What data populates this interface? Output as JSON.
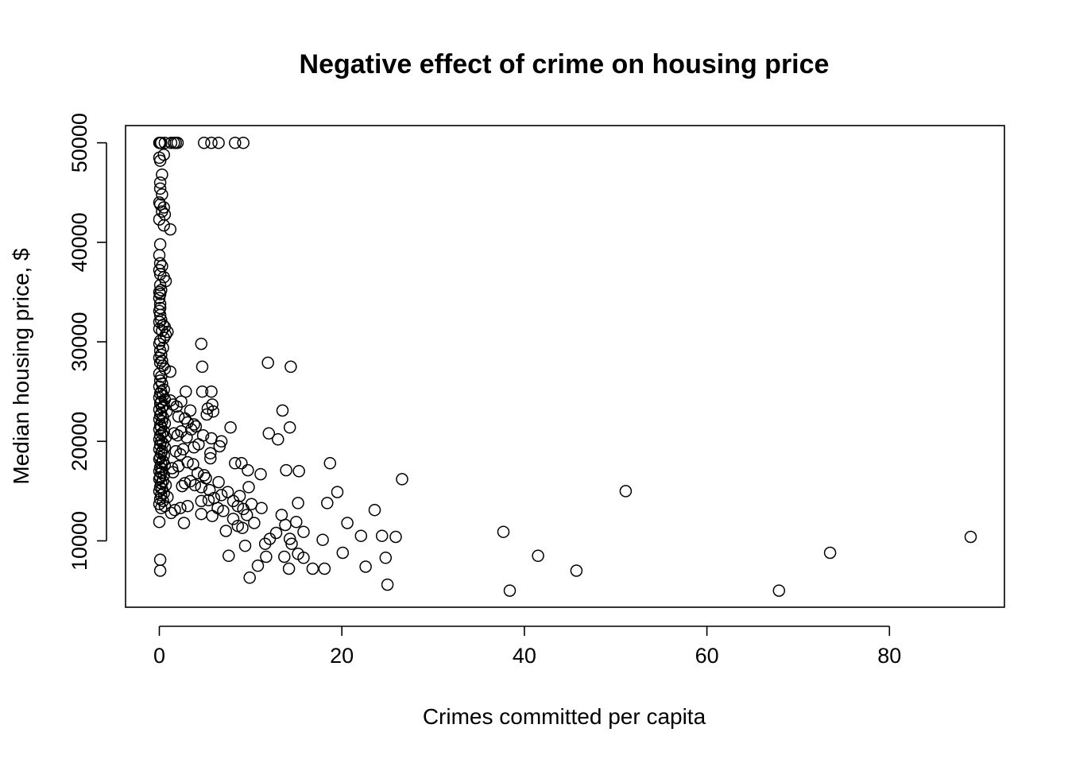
{
  "chart_data": {
    "type": "scatter",
    "title": "Negative effect of crime on housing price",
    "xlabel": "Crimes committed per capita",
    "ylabel": "Median housing price, $",
    "xlim": [
      -3.7,
      92.6
    ],
    "ylim": [
      3330,
      51730
    ],
    "xticks": [
      0,
      20,
      40,
      60,
      80
    ],
    "yticks": [
      10000,
      20000,
      30000,
      40000,
      50000
    ],
    "xtick_labels": [
      "0",
      "20",
      "40",
      "60",
      "80"
    ],
    "ytick_labels": [
      "10000",
      "20000",
      "30000",
      "40000",
      "50000"
    ],
    "grid": false,
    "legend": "none",
    "marker": "open-circle",
    "color": "#000000",
    "points": [
      [
        0.0,
        50000
      ],
      [
        0.1,
        50000
      ],
      [
        0.2,
        50000
      ],
      [
        0.6,
        50000
      ],
      [
        1.3,
        50000
      ],
      [
        1.6,
        50000
      ],
      [
        1.8,
        50000
      ],
      [
        2.0,
        50000
      ],
      [
        4.9,
        50000
      ],
      [
        5.7,
        50000
      ],
      [
        6.5,
        50000
      ],
      [
        8.3,
        50000
      ],
      [
        9.2,
        50000
      ],
      [
        0.0,
        48500
      ],
      [
        0.1,
        48200
      ],
      [
        0.5,
        48800
      ],
      [
        0.3,
        46800
      ],
      [
        0.1,
        46000
      ],
      [
        0.1,
        45400
      ],
      [
        0.3,
        44800
      ],
      [
        0.0,
        44000
      ],
      [
        0.1,
        43800
      ],
      [
        0.5,
        43500
      ],
      [
        0.3,
        43100
      ],
      [
        0.6,
        42800
      ],
      [
        0.0,
        42300
      ],
      [
        0.5,
        41700
      ],
      [
        1.2,
        41300
      ],
      [
        0.1,
        39800
      ],
      [
        0.0,
        38700
      ],
      [
        0.1,
        37900
      ],
      [
        0.3,
        37600
      ],
      [
        0.0,
        37200
      ],
      [
        0.1,
        36800
      ],
      [
        0.5,
        36500
      ],
      [
        0.7,
        36100
      ],
      [
        0.1,
        35700
      ],
      [
        0.2,
        35200
      ],
      [
        0.0,
        35000
      ],
      [
        0.1,
        34800
      ],
      [
        0.0,
        34400
      ],
      [
        0.1,
        33800
      ],
      [
        0.1,
        33400
      ],
      [
        0.0,
        33100
      ],
      [
        0.1,
        32700
      ],
      [
        0.2,
        32200
      ],
      [
        0.0,
        32000
      ],
      [
        0.4,
        31700
      ],
      [
        0.6,
        31500
      ],
      [
        0.0,
        31300
      ],
      [
        0.3,
        31100
      ],
      [
        0.9,
        31000
      ],
      [
        0.7,
        30700
      ],
      [
        0.5,
        30400
      ],
      [
        0.1,
        30100
      ],
      [
        0.0,
        29800
      ],
      [
        0.4,
        29400
      ],
      [
        0.1,
        29100
      ],
      [
        0.2,
        28700
      ],
      [
        0.0,
        28400
      ],
      [
        0.3,
        28100
      ],
      [
        0.1,
        27900
      ],
      [
        0.4,
        27600
      ],
      [
        0.6,
        27300
      ],
      [
        1.2,
        27000
      ],
      [
        0.0,
        26800
      ],
      [
        0.2,
        26500
      ],
      [
        0.1,
        26100
      ],
      [
        0.3,
        25800
      ],
      [
        0.0,
        25500
      ],
      [
        0.5,
        25200
      ],
      [
        0.2,
        25000
      ],
      [
        0.1,
        24800
      ],
      [
        0.4,
        24600
      ],
      [
        0.0,
        24400
      ],
      [
        0.6,
        24200
      ],
      [
        0.2,
        24000
      ],
      [
        0.1,
        23800
      ],
      [
        0.5,
        23600
      ],
      [
        0.3,
        23400
      ],
      [
        0.0,
        23200
      ],
      [
        0.8,
        23000
      ],
      [
        0.2,
        22800
      ],
      [
        0.1,
        22600
      ],
      [
        0.4,
        22400
      ],
      [
        0.0,
        22200
      ],
      [
        0.3,
        22000
      ],
      [
        0.6,
        21800
      ],
      [
        0.1,
        21600
      ],
      [
        0.2,
        21400
      ],
      [
        0.0,
        21200
      ],
      [
        0.5,
        21000
      ],
      [
        0.3,
        20800
      ],
      [
        0.1,
        20600
      ],
      [
        0.7,
        20400
      ],
      [
        0.0,
        20200
      ],
      [
        0.2,
        20000
      ],
      [
        0.4,
        19800
      ],
      [
        0.1,
        19600
      ],
      [
        0.6,
        19400
      ],
      [
        0.0,
        19200
      ],
      [
        0.3,
        19000
      ],
      [
        0.2,
        18800
      ],
      [
        0.5,
        18600
      ],
      [
        0.1,
        18400
      ],
      [
        0.0,
        18200
      ],
      [
        0.4,
        18000
      ],
      [
        0.2,
        17800
      ],
      [
        0.6,
        17600
      ],
      [
        0.1,
        17400
      ],
      [
        0.3,
        17200
      ],
      [
        0.0,
        17000
      ],
      [
        0.2,
        16800
      ],
      [
        0.5,
        16600
      ],
      [
        0.1,
        16400
      ],
      [
        0.0,
        16200
      ],
      [
        0.4,
        16000
      ],
      [
        0.2,
        15800
      ],
      [
        0.7,
        15600
      ],
      [
        0.1,
        15400
      ],
      [
        0.3,
        15200
      ],
      [
        0.0,
        15000
      ],
      [
        0.5,
        14800
      ],
      [
        0.2,
        14600
      ],
      [
        0.9,
        14400
      ],
      [
        0.1,
        14200
      ],
      [
        0.4,
        14000
      ],
      [
        0.0,
        13700
      ],
      [
        0.6,
        13500
      ],
      [
        0.2,
        13300
      ],
      [
        0.0,
        11900
      ],
      [
        0.1,
        8100
      ],
      [
        0.1,
        7000
      ],
      [
        1.2,
        24100
      ],
      [
        1.5,
        23700
      ],
      [
        1.9,
        23500
      ],
      [
        2.4,
        24000
      ],
      [
        2.9,
        25000
      ],
      [
        4.7,
        25000
      ],
      [
        5.7,
        25000
      ],
      [
        5.8,
        23700
      ],
      [
        5.3,
        23300
      ],
      [
        5.9,
        23000
      ],
      [
        5.2,
        22700
      ],
      [
        3.4,
        23100
      ],
      [
        2.1,
        22500
      ],
      [
        2.8,
        22300
      ],
      [
        3.1,
        21900
      ],
      [
        3.8,
        21700
      ],
      [
        4.0,
        21500
      ],
      [
        3.5,
        21200
      ],
      [
        2.4,
        21000
      ],
      [
        1.6,
        20800
      ],
      [
        2.0,
        20600
      ],
      [
        3.0,
        20400
      ],
      [
        4.8,
        20600
      ],
      [
        5.7,
        20300
      ],
      [
        6.8,
        20000
      ],
      [
        6.6,
        19500
      ],
      [
        4.3,
        19700
      ],
      [
        3.8,
        19400
      ],
      [
        2.6,
        19200
      ],
      [
        1.8,
        19000
      ],
      [
        2.3,
        18700
      ],
      [
        5.6,
        18800
      ],
      [
        5.6,
        18300
      ],
      [
        3.1,
        17900
      ],
      [
        3.7,
        17700
      ],
      [
        2.1,
        17500
      ],
      [
        1.4,
        17300
      ],
      [
        1.5,
        16900
      ],
      [
        4.2,
        16800
      ],
      [
        4.9,
        16600
      ],
      [
        5.1,
        16300
      ],
      [
        3.4,
        16000
      ],
      [
        2.8,
        15800
      ],
      [
        2.5,
        15500
      ],
      [
        3.9,
        15600
      ],
      [
        4.6,
        15400
      ],
      [
        5.5,
        15100
      ],
      [
        6.5,
        15900
      ],
      [
        7.5,
        14900
      ],
      [
        6.8,
        14600
      ],
      [
        6.0,
        14300
      ],
      [
        5.4,
        14100
      ],
      [
        4.6,
        14000
      ],
      [
        3.1,
        13500
      ],
      [
        2.3,
        13300
      ],
      [
        1.7,
        13100
      ],
      [
        1.3,
        12800
      ],
      [
        2.7,
        11800
      ],
      [
        4.6,
        12700
      ],
      [
        5.8,
        12500
      ],
      [
        6.4,
        13300
      ],
      [
        7.0,
        13000
      ],
      [
        7.3,
        11000
      ],
      [
        7.6,
        8500
      ],
      [
        7.8,
        21400
      ],
      [
        8.3,
        17800
      ],
      [
        9.0,
        17800
      ],
      [
        9.7,
        17100
      ],
      [
        11.1,
        16700
      ],
      [
        12.0,
        20800
      ],
      [
        13.0,
        20200
      ],
      [
        13.5,
        23100
      ],
      [
        14.3,
        21400
      ],
      [
        11.9,
        27900
      ],
      [
        14.4,
        27500
      ],
      [
        4.7,
        27500
      ],
      [
        4.6,
        29800
      ],
      [
        13.9,
        17100
      ],
      [
        15.3,
        17000
      ],
      [
        18.7,
        17800
      ],
      [
        26.6,
        16200
      ],
      [
        19.5,
        14900
      ],
      [
        9.8,
        15400
      ],
      [
        8.8,
        14500
      ],
      [
        8.1,
        14000
      ],
      [
        8.6,
        13500
      ],
      [
        9.2,
        13200
      ],
      [
        10.1,
        13700
      ],
      [
        11.2,
        13300
      ],
      [
        9.6,
        12600
      ],
      [
        8.1,
        12200
      ],
      [
        8.6,
        11500
      ],
      [
        9.1,
        11300
      ],
      [
        10.4,
        11800
      ],
      [
        11.6,
        9700
      ],
      [
        9.4,
        9500
      ],
      [
        12.1,
        10200
      ],
      [
        12.8,
        10800
      ],
      [
        13.4,
        12600
      ],
      [
        13.8,
        11600
      ],
      [
        14.3,
        10200
      ],
      [
        14.5,
        9700
      ],
      [
        15.0,
        11900
      ],
      [
        15.2,
        13800
      ],
      [
        15.8,
        10900
      ],
      [
        15.2,
        8700
      ],
      [
        15.8,
        8300
      ],
      [
        13.7,
        8400
      ],
      [
        14.2,
        7200
      ],
      [
        16.8,
        7200
      ],
      [
        17.9,
        10100
      ],
      [
        18.1,
        7200
      ],
      [
        18.4,
        13800
      ],
      [
        20.1,
        8800
      ],
      [
        20.6,
        11800
      ],
      [
        22.1,
        10500
      ],
      [
        22.6,
        7400
      ],
      [
        23.6,
        13100
      ],
      [
        24.4,
        10500
      ],
      [
        24.8,
        8300
      ],
      [
        25.0,
        5600
      ],
      [
        25.9,
        10400
      ],
      [
        11.7,
        8400
      ],
      [
        10.8,
        7500
      ],
      [
        9.9,
        6300
      ],
      [
        37.7,
        10900
      ],
      [
        38.4,
        5000
      ],
      [
        41.5,
        8500
      ],
      [
        45.7,
        7000
      ],
      [
        51.1,
        15000
      ],
      [
        67.9,
        5000
      ],
      [
        73.5,
        8800
      ],
      [
        88.9,
        10400
      ]
    ]
  }
}
